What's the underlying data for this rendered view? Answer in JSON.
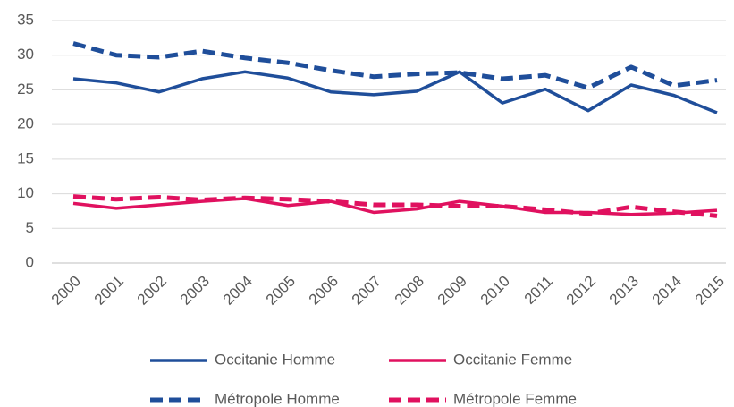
{
  "chart_data": {
    "type": "line",
    "categories": [
      "2000",
      "2001",
      "2002",
      "2003",
      "2004",
      "2005",
      "2006",
      "2007",
      "2008",
      "2009",
      "2010",
      "2011",
      "2012",
      "2013",
      "2014",
      "2015"
    ],
    "series": [
      {
        "name": "Occitanie Homme",
        "color": "#1f4e9a",
        "dashed": false,
        "values": [
          26.6,
          26.0,
          24.7,
          26.6,
          27.6,
          26.7,
          24.7,
          24.3,
          24.8,
          27.6,
          23.1,
          25.1,
          22.0,
          25.7,
          24.2,
          21.7
        ]
      },
      {
        "name": "Occitanie Femme",
        "color": "#e0115f",
        "dashed": false,
        "values": [
          8.6,
          7.9,
          8.4,
          8.9,
          9.3,
          8.3,
          8.9,
          7.3,
          7.8,
          8.9,
          8.2,
          7.3,
          7.3,
          7.0,
          7.2,
          7.6
        ]
      },
      {
        "name": "Métropole Homme",
        "color": "#1f4e9a",
        "dashed": true,
        "values": [
          31.7,
          30.0,
          29.7,
          30.6,
          29.6,
          28.9,
          27.8,
          26.9,
          27.3,
          27.5,
          26.6,
          27.1,
          25.3,
          28.3,
          25.6,
          26.4
        ]
      },
      {
        "name": "Métropole Femme",
        "color": "#e0115f",
        "dashed": true,
        "values": [
          9.6,
          9.2,
          9.5,
          9.1,
          9.4,
          9.2,
          8.9,
          8.4,
          8.4,
          8.2,
          8.2,
          7.7,
          7.1,
          8.1,
          7.4,
          6.8
        ]
      }
    ],
    "ylim": [
      0,
      35
    ],
    "yticks": [
      0,
      5,
      10,
      15,
      20,
      25,
      30,
      35
    ],
    "grid": true,
    "legend": "bottom"
  }
}
